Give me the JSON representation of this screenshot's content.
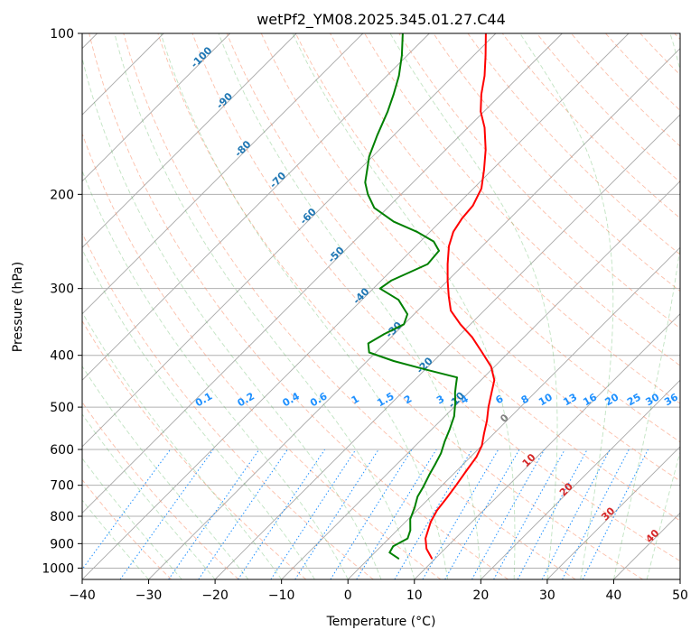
{
  "chart_data": {
    "type": "line",
    "title": "wetPf2_YM08.2025.345.01.27.C44",
    "xlabel": "Temperature (°C)",
    "ylabel": "Pressure (hPa)",
    "xlim": [
      -40,
      50
    ],
    "ylim": [
      1050,
      100
    ],
    "x_ticks": [
      -40,
      -30,
      -20,
      -10,
      0,
      10,
      20,
      30,
      40,
      50
    ],
    "x_tick_labels": [
      "−40",
      "−30",
      "−20",
      "−10",
      "0",
      "10",
      "20",
      "30",
      "40",
      "50"
    ],
    "y_ticks": [
      1000,
      900,
      800,
      700,
      600,
      500,
      400,
      300,
      200,
      100
    ],
    "y_tick_labels": [
      "1000",
      "900",
      "800",
      "700",
      "600",
      "500",
      "400",
      "300",
      "200",
      "100"
    ],
    "grid": true,
    "series": [
      {
        "name": "Temperature",
        "color": "#ff0000",
        "points": [
          {
            "p": 960,
            "t": 9.5
          },
          {
            "p": 920,
            "t": 7.2
          },
          {
            "p": 880,
            "t": 5.5
          },
          {
            "p": 820,
            "t": 3.8
          },
          {
            "p": 780,
            "t": 3.0
          },
          {
            "p": 740,
            "t": 2.6
          },
          {
            "p": 700,
            "t": 2.1
          },
          {
            "p": 660,
            "t": 1.5
          },
          {
            "p": 620,
            "t": 0.9
          },
          {
            "p": 590,
            "t": 0.0
          },
          {
            "p": 560,
            "t": -1.5
          },
          {
            "p": 530,
            "t": -3.0
          },
          {
            "p": 500,
            "t": -4.8
          },
          {
            "p": 470,
            "t": -6.5
          },
          {
            "p": 445,
            "t": -8.0
          },
          {
            "p": 420,
            "t": -10.5
          },
          {
            "p": 395,
            "t": -14.0
          },
          {
            "p": 370,
            "t": -17.8
          },
          {
            "p": 350,
            "t": -21.5
          },
          {
            "p": 330,
            "t": -25.0
          },
          {
            "p": 310,
            "t": -27.5
          },
          {
            "p": 290,
            "t": -30.0
          },
          {
            "p": 270,
            "t": -32.5
          },
          {
            "p": 250,
            "t": -35.0
          },
          {
            "p": 235,
            "t": -36.5
          },
          {
            "p": 222,
            "t": -37.2
          },
          {
            "p": 210,
            "t": -37.5
          },
          {
            "p": 195,
            "t": -38.8
          },
          {
            "p": 180,
            "t": -41.2
          },
          {
            "p": 165,
            "t": -44.0
          },
          {
            "p": 150,
            "t": -47.5
          },
          {
            "p": 140,
            "t": -50.5
          },
          {
            "p": 130,
            "t": -53.0
          },
          {
            "p": 120,
            "t": -55.3
          },
          {
            "p": 110,
            "t": -58.2
          },
          {
            "p": 100,
            "t": -61.5
          }
        ]
      },
      {
        "name": "Dewpoint",
        "color": "#008000",
        "points": [
          {
            "p": 960,
            "t": 4.5
          },
          {
            "p": 935,
            "t": 2.2
          },
          {
            "p": 910,
            "t": 1.8
          },
          {
            "p": 880,
            "t": 2.8
          },
          {
            "p": 850,
            "t": 2.0
          },
          {
            "p": 810,
            "t": 0.3
          },
          {
            "p": 770,
            "t": -0.8
          },
          {
            "p": 735,
            "t": -2.0
          },
          {
            "p": 705,
            "t": -2.6
          },
          {
            "p": 670,
            "t": -3.5
          },
          {
            "p": 640,
            "t": -4.2
          },
          {
            "p": 610,
            "t": -5.0
          },
          {
            "p": 580,
            "t": -6.2
          },
          {
            "p": 550,
            "t": -7.3
          },
          {
            "p": 520,
            "t": -8.6
          },
          {
            "p": 490,
            "t": -10.5
          },
          {
            "p": 470,
            "t": -12.0
          },
          {
            "p": 455,
            "t": -13.0
          },
          {
            "p": 440,
            "t": -14.0
          },
          {
            "p": 425,
            "t": -20.0
          },
          {
            "p": 410,
            "t": -26.0
          },
          {
            "p": 395,
            "t": -31.0
          },
          {
            "p": 380,
            "t": -32.5
          },
          {
            "p": 365,
            "t": -31.5
          },
          {
            "p": 350,
            "t": -30.0
          },
          {
            "p": 335,
            "t": -31.0
          },
          {
            "p": 315,
            "t": -34.5
          },
          {
            "p": 300,
            "t": -39.0
          },
          {
            "p": 290,
            "t": -38.5
          },
          {
            "p": 280,
            "t": -37.0
          },
          {
            "p": 270,
            "t": -35.5
          },
          {
            "p": 255,
            "t": -35.8
          },
          {
            "p": 245,
            "t": -38.0
          },
          {
            "p": 235,
            "t": -42.0
          },
          {
            "p": 225,
            "t": -47.0
          },
          {
            "p": 212,
            "t": -52.0
          },
          {
            "p": 200,
            "t": -55.0
          },
          {
            "p": 190,
            "t": -57.2
          },
          {
            "p": 180,
            "t": -58.8
          },
          {
            "p": 170,
            "t": -60.5
          },
          {
            "p": 155,
            "t": -62.5
          },
          {
            "p": 140,
            "t": -64.5
          },
          {
            "p": 130,
            "t": -66.2
          },
          {
            "p": 120,
            "t": -68.2
          },
          {
            "p": 110,
            "t": -70.8
          },
          {
            "p": 100,
            "t": -74.0
          }
        ]
      }
    ],
    "isotherm_labels": [
      {
        "t": -100,
        "p": 112,
        "text": "-100"
      },
      {
        "t": -90,
        "p": 135,
        "text": "-90"
      },
      {
        "t": -80,
        "p": 166,
        "text": "-80"
      },
      {
        "t": -70,
        "p": 190,
        "text": "-70"
      },
      {
        "t": -60,
        "p": 222,
        "text": "-60"
      },
      {
        "t": -50,
        "p": 262,
        "text": "-50"
      },
      {
        "t": -40,
        "p": 313,
        "text": "-40"
      },
      {
        "t": -30,
        "p": 362,
        "text": "-30"
      },
      {
        "t": -20,
        "p": 422,
        "text": "-20"
      },
      {
        "t": -10,
        "p": 490,
        "text": "-10"
      }
    ],
    "mixing_ratio_labels": [
      "0.1",
      "0.2",
      "0.4",
      "0.6",
      "1",
      "1.5",
      "2",
      "3",
      "4",
      "6",
      "8",
      "10",
      "13",
      "16",
      "20",
      "25",
      "30",
      "36"
    ],
    "mixing_ratio_values": [
      0.1,
      0.2,
      0.4,
      0.6,
      1,
      1.5,
      2,
      3,
      4,
      6,
      8,
      10,
      13,
      16,
      20,
      25,
      30,
      36
    ],
    "wet_bulb_labels": [
      {
        "text": "0",
        "color": "#808080",
        "t": 0,
        "p": 530
      },
      {
        "text": "10",
        "color": "#d62728",
        "t": 10,
        "p": 635
      },
      {
        "text": "20",
        "color": "#d62728",
        "t": 20,
        "p": 720
      },
      {
        "text": "30",
        "color": "#d62728",
        "t": 30,
        "p": 800
      },
      {
        "text": "40",
        "color": "#d62728",
        "t": 40,
        "p": 880
      }
    ]
  }
}
